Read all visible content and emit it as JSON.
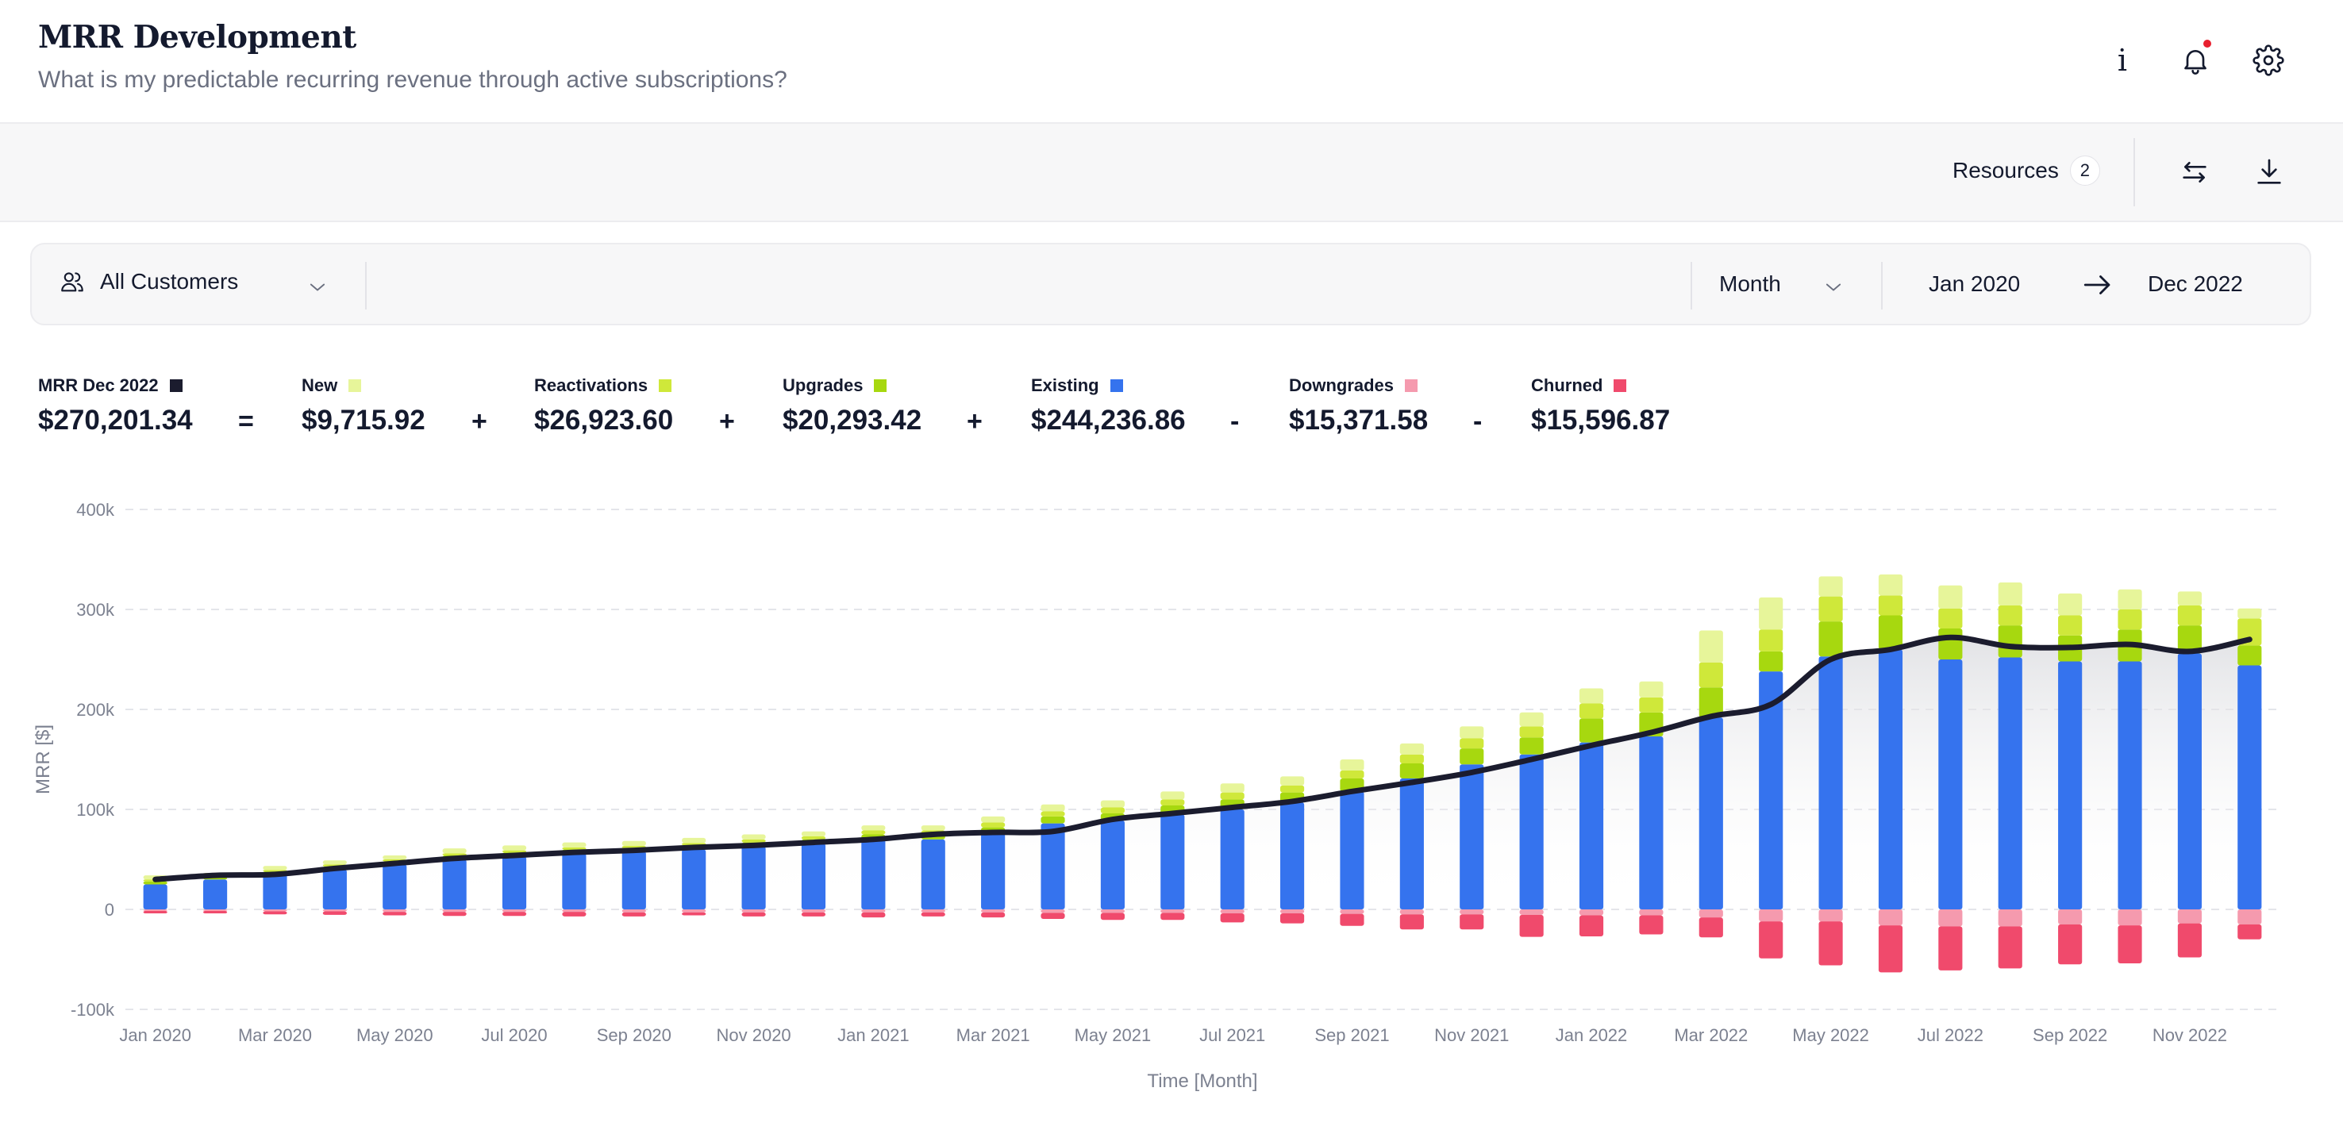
{
  "header": {
    "title": "MRR Development",
    "subtitle": "What is my predictable recurring revenue through active subscriptions?",
    "info_icon": "info-icon",
    "notification_icon": "bell-icon",
    "settings_icon": "gear-icon"
  },
  "toolbar": {
    "resources_label": "Resources",
    "resources_count": "2",
    "swap_icon": "swap-arrows-icon",
    "download_icon": "download-icon"
  },
  "filters": {
    "segment": "All Customers",
    "granularity": "Month",
    "date_from": "Jan 2020",
    "date_to": "Dec 2022"
  },
  "kpis": {
    "mrr": {
      "label": "MRR Dec 2022",
      "value": "$270,201.34",
      "color": "#1b1c2e"
    },
    "new": {
      "label": "New",
      "value": "$9,715.92",
      "color": "#e7f59a"
    },
    "reactivations": {
      "label": "Reactivations",
      "value": "$26,923.60",
      "color": "#cfe83a"
    },
    "upgrades": {
      "label": "Upgrades",
      "value": "$20,293.42",
      "color": "#a7d80f"
    },
    "existing": {
      "label": "Existing",
      "value": "$244,236.86",
      "color": "#3573ee"
    },
    "downgrades": {
      "label": "Downgrades",
      "value": "$15,371.58",
      "color": "#f59aae"
    },
    "churned": {
      "label": "Churned",
      "value": "$15,596.87",
      "color": "#f04a6c"
    },
    "operators": [
      "=",
      "+",
      "+",
      "+",
      "-",
      "-"
    ]
  },
  "chart_data": {
    "type": "bar",
    "stacked": true,
    "ylabel": "MRR [$]",
    "xlabel": "Time [Month]",
    "ylim": [
      -100000,
      400000
    ],
    "yticks": [
      -100000,
      0,
      100000,
      200000,
      300000,
      400000
    ],
    "ytick_labels": [
      "-100k",
      "0",
      "100k",
      "200k",
      "300k",
      "400k"
    ],
    "xtick_labels": [
      "Jan 2020",
      "Mar 2020",
      "May 2020",
      "Jul 2020",
      "Sep 2020",
      "Nov 2020",
      "Jan 2021",
      "Mar 2021",
      "May 2021",
      "Jul 2021",
      "Sep 2021",
      "Nov 2021",
      "Jan 2022",
      "Mar 2022",
      "May 2022",
      "Jul 2022",
      "Sep 2022",
      "Nov 2022"
    ],
    "categories": [
      "Jan 2020",
      "Feb 2020",
      "Mar 2020",
      "Apr 2020",
      "May 2020",
      "Jun 2020",
      "Jul 2020",
      "Aug 2020",
      "Sep 2020",
      "Oct 2020",
      "Nov 2020",
      "Dec 2020",
      "Jan 2021",
      "Feb 2021",
      "Mar 2021",
      "Apr 2021",
      "May 2021",
      "Jun 2021",
      "Jul 2021",
      "Aug 2021",
      "Sep 2021",
      "Oct 2021",
      "Nov 2021",
      "Dec 2021",
      "Jan 2022",
      "Feb 2022",
      "Mar 2022",
      "Apr 2022",
      "May 2022",
      "Jun 2022",
      "Jul 2022",
      "Aug 2022",
      "Sep 2022",
      "Oct 2022",
      "Nov 2022",
      "Dec 2022"
    ],
    "series": [
      {
        "name": "Existing",
        "color": "#3573ee",
        "values": [
          25000,
          30000,
          35000,
          40000,
          45000,
          50000,
          53000,
          56000,
          58000,
          60000,
          63000,
          66000,
          70000,
          70000,
          76000,
          86000,
          89000,
          95000,
          100000,
          107000,
          118000,
          131000,
          145000,
          155000,
          167000,
          173000,
          192000,
          238000,
          253000,
          260000,
          250000,
          252000,
          248000,
          248000,
          256000,
          244000
        ]
      },
      {
        "name": "Upgrades",
        "color": "#a7d80f",
        "values": [
          3000,
          2000,
          3000,
          3000,
          3000,
          4000,
          4000,
          4000,
          3000,
          4000,
          4000,
          4000,
          5000,
          5000,
          6000,
          7000,
          7000,
          9000,
          10000,
          10000,
          13000,
          15000,
          16000,
          17000,
          24000,
          24000,
          30000,
          20000,
          35000,
          34000,
          31000,
          32000,
          26000,
          32000,
          28000,
          20000
        ]
      },
      {
        "name": "Reactivations",
        "color": "#cfe83a",
        "values": [
          2000,
          1500,
          1500,
          2000,
          2000,
          2000,
          2000,
          2000,
          2500,
          2500,
          3000,
          3000,
          4000,
          4000,
          5000,
          5000,
          6000,
          6000,
          7000,
          7000,
          8000,
          9000,
          10000,
          11000,
          15000,
          15000,
          25000,
          22000,
          25000,
          20000,
          20000,
          20000,
          20000,
          20000,
          20000,
          27000
        ]
      },
      {
        "name": "New",
        "color": "#e7f59a",
        "values": [
          4000,
          3000,
          4000,
          4000,
          4000,
          5000,
          5000,
          5000,
          5000,
          5000,
          5000,
          5000,
          5000,
          5000,
          6000,
          7000,
          7000,
          8000,
          9000,
          9000,
          11000,
          11000,
          12000,
          14000,
          15000,
          16000,
          32000,
          32000,
          20000,
          21000,
          23000,
          23000,
          22000,
          20000,
          14000,
          10000
        ]
      },
      {
        "name": "Downgrades",
        "color": "#f59aae",
        "values": [
          -1500,
          -1500,
          -2000,
          -2000,
          -2500,
          -2500,
          -2500,
          -2500,
          -3000,
          -3000,
          -3000,
          -3000,
          -3000,
          -3000,
          -3000,
          -3500,
          -3500,
          -3500,
          -4000,
          -4000,
          -4500,
          -5000,
          -5000,
          -5500,
          -6000,
          -6000,
          -8000,
          -12000,
          -12000,
          -16000,
          -17000,
          -17000,
          -15000,
          -16000,
          -14000,
          -15000
        ]
      },
      {
        "name": "Churned",
        "color": "#f04a6c",
        "values": [
          -2500,
          -2500,
          -3000,
          -3500,
          -3500,
          -4000,
          -4000,
          -4500,
          -4000,
          -3000,
          -4000,
          -4000,
          -5000,
          -4000,
          -5000,
          -6000,
          -7000,
          -7000,
          -9000,
          -10000,
          -12000,
          -15000,
          -15000,
          -22000,
          -21000,
          -19000,
          -20000,
          -37000,
          -44000,
          -47000,
          -44000,
          -42000,
          -40000,
          -38000,
          -34000,
          -15000
        ]
      }
    ],
    "line": {
      "name": "MRR",
      "color": "#1b1c2e",
      "values": [
        30000,
        34000,
        35000,
        41000,
        46000,
        51000,
        54000,
        57000,
        59000,
        62000,
        64000,
        67000,
        70000,
        75000,
        77000,
        78000,
        90000,
        96000,
        102000,
        108000,
        118000,
        127000,
        137000,
        150000,
        164000,
        177000,
        193000,
        205000,
        250000,
        260000,
        272000,
        263000,
        262000,
        265000,
        258000,
        270000
      ]
    }
  }
}
